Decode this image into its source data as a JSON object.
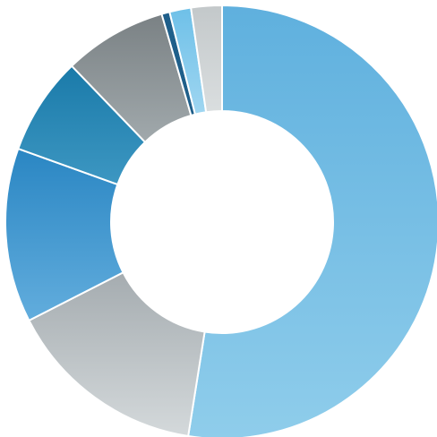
{
  "chart_data": {
    "type": "pie",
    "variant": "donut",
    "title": "",
    "labels": [],
    "data_labels": false,
    "legend": "none",
    "slices": [
      {
        "value": 52.5,
        "color": "#5fb0de",
        "color_end": "#8fcdeb"
      },
      {
        "value": 15.0,
        "color": "#a5acb0",
        "color_end": "#d4d9db"
      },
      {
        "value": 13.0,
        "color": "#2a86c3",
        "color_end": "#62addd"
      },
      {
        "value": 7.3,
        "color": "#1a7aa9",
        "color_end": "#3d97c2"
      },
      {
        "value": 7.7,
        "color": "#7a8184",
        "color_end": "#a1a9ac"
      },
      {
        "value": 0.6,
        "color": "#1f5f8a",
        "color_end": "#1f5f8a"
      },
      {
        "value": 1.6,
        "color": "#6ec0e8",
        "color_end": "#9fd6f1"
      },
      {
        "value": 2.3,
        "color": "#c3c8ca",
        "color_end": "#dadedf"
      }
    ]
  }
}
